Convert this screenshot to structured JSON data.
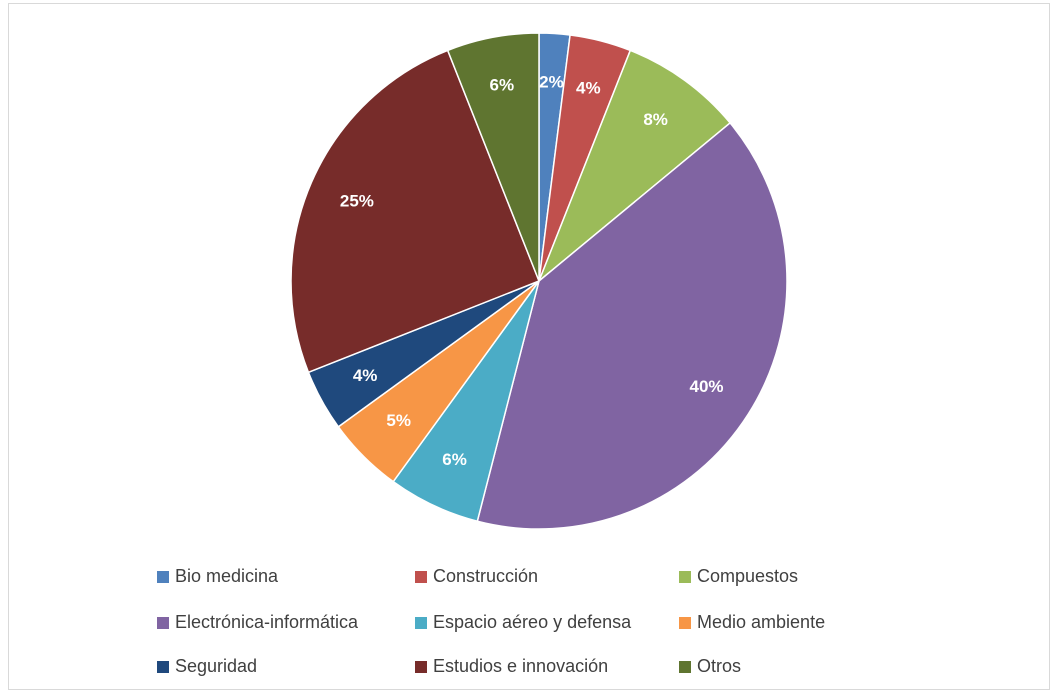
{
  "chart_data": {
    "type": "pie",
    "categories": [
      "Bio medicina",
      "Construcción",
      "Compuestos",
      "Electrónica-informática",
      "Espacio aéreo y defensa",
      "Medio ambiente",
      "Seguridad",
      "Estudios e innovación",
      "Otros"
    ],
    "values": [
      2,
      4,
      8,
      40,
      6,
      5,
      4,
      25,
      6
    ],
    "value_labels": [
      "2%",
      "4%",
      "8%",
      "40%",
      "6%",
      "5%",
      "4%",
      "25%",
      "6%"
    ],
    "colors": [
      "#4f81bd",
      "#c0504d",
      "#9bbb59",
      "#8064a2",
      "#4bacc6",
      "#f79646",
      "#1f497d",
      "#772c2a",
      "#5f7530"
    ],
    "legend": "bottom"
  }
}
